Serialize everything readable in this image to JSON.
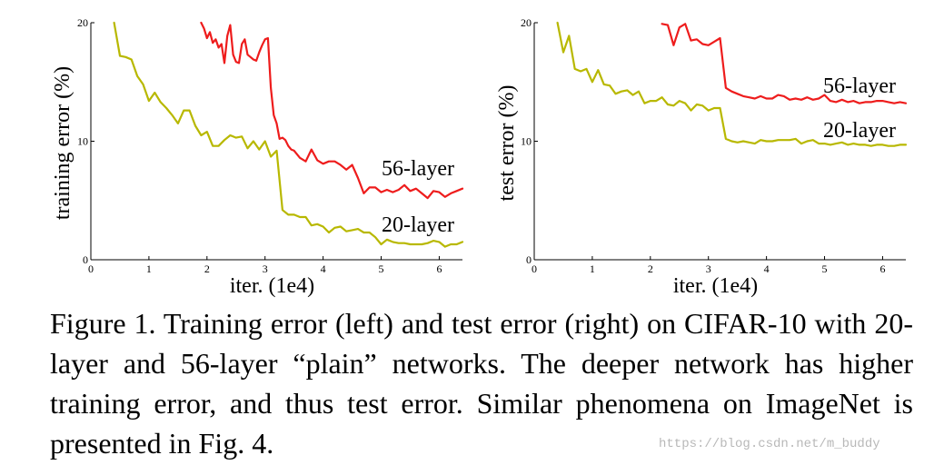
{
  "chart_data": [
    {
      "type": "line",
      "ylabel": "training error (%)",
      "xlabel": "iter. (1e4)",
      "xlim": [
        0,
        6.4
      ],
      "ylim": [
        0,
        20
      ],
      "xticks": [
        "0",
        "1",
        "2",
        "3",
        "4",
        "5",
        "6"
      ],
      "yticks": [
        "0",
        "10",
        "20"
      ],
      "series": [
        {
          "name": "56-layer",
          "color": "#ee1c1c",
          "x": [
            1.9,
            1.95,
            2.0,
            2.05,
            2.1,
            2.15,
            2.2,
            2.25,
            2.3,
            2.35,
            2.4,
            2.45,
            2.5,
            2.55,
            2.6,
            2.65,
            2.7,
            2.75,
            2.8,
            2.85,
            2.9,
            2.95,
            3.0,
            3.05,
            3.1,
            3.15,
            3.2,
            3.25,
            3.3,
            3.35,
            3.4,
            3.45,
            3.5,
            3.6,
            3.7,
            3.8,
            3.9,
            4.0,
            4.1,
            4.2,
            4.3,
            4.4,
            4.5,
            4.6,
            4.7,
            4.8,
            4.9,
            5.0,
            5.1,
            5.2,
            5.3,
            5.4,
            5.5,
            5.6,
            5.7,
            5.8,
            5.9,
            6.0,
            6.1,
            6.2,
            6.3,
            6.4
          ],
          "y": [
            20,
            19.5,
            18.7,
            19.2,
            18.3,
            18.6,
            17.9,
            18.2,
            16.6,
            18.9,
            19.8,
            17.3,
            16.7,
            16.6,
            18.2,
            18.6,
            17.3,
            17.1,
            16.9,
            16.8,
            17.5,
            18.1,
            18.6,
            18.7,
            14.5,
            12.2,
            11.5,
            10.2,
            10.3,
            10.1,
            9.6,
            9.3,
            9.2,
            8.6,
            8.3,
            9.3,
            8.4,
            8.1,
            8.3,
            8.3,
            8.0,
            7.6,
            8.0,
            6.9,
            5.6,
            6.1,
            6.1,
            5.7,
            5.9,
            5.7,
            5.9,
            6.3,
            5.8,
            6.0,
            5.6,
            5.2,
            5.8,
            5.7,
            5.3,
            5.6,
            5.8,
            6.0
          ]
        },
        {
          "name": "20-layer",
          "color": "#b8b800",
          "x": [
            0.4,
            0.5,
            0.6,
            0.7,
            0.8,
            0.9,
            1.0,
            1.1,
            1.2,
            1.3,
            1.4,
            1.5,
            1.6,
            1.7,
            1.8,
            1.9,
            2.0,
            2.1,
            2.2,
            2.3,
            2.4,
            2.5,
            2.6,
            2.7,
            2.8,
            2.9,
            3.0,
            3.1,
            3.2,
            3.3,
            3.4,
            3.5,
            3.6,
            3.7,
            3.8,
            3.9,
            4.0,
            4.1,
            4.2,
            4.3,
            4.4,
            4.5,
            4.6,
            4.7,
            4.8,
            4.9,
            5.0,
            5.1,
            5.2,
            5.3,
            5.4,
            5.5,
            5.6,
            5.7,
            5.8,
            5.9,
            6.0,
            6.1,
            6.2,
            6.3,
            6.4
          ],
          "y": [
            20,
            17.2,
            17.1,
            16.9,
            15.5,
            14.8,
            13.4,
            14.1,
            13.3,
            12.8,
            12.2,
            11.5,
            12.6,
            12.6,
            11.3,
            10.5,
            10.8,
            9.6,
            9.6,
            10.1,
            10.5,
            10.3,
            10.4,
            9.4,
            10.0,
            9.3,
            10.0,
            8.7,
            9.2,
            4.2,
            3.8,
            3.8,
            3.6,
            3.6,
            2.9,
            3.0,
            2.8,
            2.3,
            2.7,
            2.8,
            2.4,
            2.5,
            2.6,
            2.3,
            2.3,
            1.9,
            1.3,
            1.7,
            1.5,
            1.4,
            1.4,
            1.3,
            1.3,
            1.3,
            1.4,
            1.6,
            1.5,
            1.1,
            1.3,
            1.3,
            1.5
          ]
        }
      ]
    },
    {
      "type": "line",
      "ylabel": "test error (%)",
      "xlabel": "iter. (1e4)",
      "xlim": [
        0,
        6.4
      ],
      "ylim": [
        0,
        20
      ],
      "xticks": [
        "0",
        "1",
        "2",
        "3",
        "4",
        "5",
        "6"
      ],
      "yticks": [
        "0",
        "10",
        "20"
      ],
      "series": [
        {
          "name": "56-layer",
          "color": "#ee1c1c",
          "x": [
            2.2,
            2.3,
            2.4,
            2.5,
            2.6,
            2.7,
            2.8,
            2.9,
            3.0,
            3.1,
            3.2,
            3.3,
            3.4,
            3.5,
            3.6,
            3.7,
            3.8,
            3.9,
            4.0,
            4.1,
            4.2,
            4.3,
            4.4,
            4.5,
            4.6,
            4.7,
            4.8,
            4.9,
            5.0,
            5.1,
            5.2,
            5.3,
            5.4,
            5.5,
            5.6,
            5.7,
            5.8,
            5.9,
            6.0,
            6.1,
            6.2,
            6.3,
            6.4
          ],
          "y": [
            19.9,
            19.8,
            18.1,
            19.6,
            19.9,
            18.5,
            18.6,
            18.2,
            18.1,
            18.4,
            18.7,
            14.5,
            14.2,
            14.0,
            13.8,
            13.7,
            13.6,
            13.8,
            13.6,
            13.6,
            13.9,
            13.8,
            13.5,
            13.6,
            13.5,
            13.7,
            13.5,
            13.6,
            13.9,
            13.4,
            13.3,
            13.5,
            13.3,
            13.4,
            13.2,
            13.3,
            13.3,
            13.4,
            13.4,
            13.3,
            13.2,
            13.3,
            13.2
          ]
        },
        {
          "name": "20-layer",
          "color": "#b8b800",
          "x": [
            0.4,
            0.5,
            0.6,
            0.7,
            0.8,
            0.9,
            1.0,
            1.1,
            1.2,
            1.3,
            1.4,
            1.5,
            1.6,
            1.7,
            1.8,
            1.9,
            2.0,
            2.1,
            2.2,
            2.3,
            2.4,
            2.5,
            2.6,
            2.7,
            2.8,
            2.9,
            3.0,
            3.1,
            3.2,
            3.3,
            3.4,
            3.5,
            3.6,
            3.7,
            3.8,
            3.9,
            4.0,
            4.1,
            4.2,
            4.3,
            4.4,
            4.5,
            4.6,
            4.7,
            4.8,
            4.9,
            5.0,
            5.1,
            5.2,
            5.3,
            5.4,
            5.5,
            5.6,
            5.7,
            5.8,
            5.9,
            6.0,
            6.1,
            6.2,
            6.3,
            6.4
          ],
          "y": [
            20,
            17.5,
            18.9,
            16.1,
            15.9,
            16.1,
            15.0,
            16.0,
            14.8,
            14.7,
            14.0,
            14.2,
            14.3,
            13.9,
            14.2,
            13.2,
            13.4,
            13.4,
            13.7,
            13.1,
            13.0,
            13.4,
            13.2,
            12.6,
            13.1,
            13.0,
            12.6,
            12.8,
            12.8,
            10.2,
            10.0,
            9.9,
            10.0,
            9.9,
            9.8,
            10.1,
            10.0,
            10.0,
            10.1,
            10.1,
            10.1,
            10.2,
            9.8,
            10.0,
            10.1,
            9.8,
            9.8,
            9.7,
            9.8,
            9.9,
            9.7,
            9.8,
            9.7,
            9.7,
            9.6,
            9.7,
            9.7,
            9.6,
            9.6,
            9.7,
            9.7
          ]
        }
      ]
    }
  ],
  "caption": "Figure 1. Training error (left) and test error (right) on CIFAR-10 with 20-layer and 56-layer “plain” networks. The deeper network has higher training error, and thus test error.  Similar phenomena on ImageNet is presented in Fig. 4.",
  "watermark": "https://blog.csdn.net/m_buddy"
}
